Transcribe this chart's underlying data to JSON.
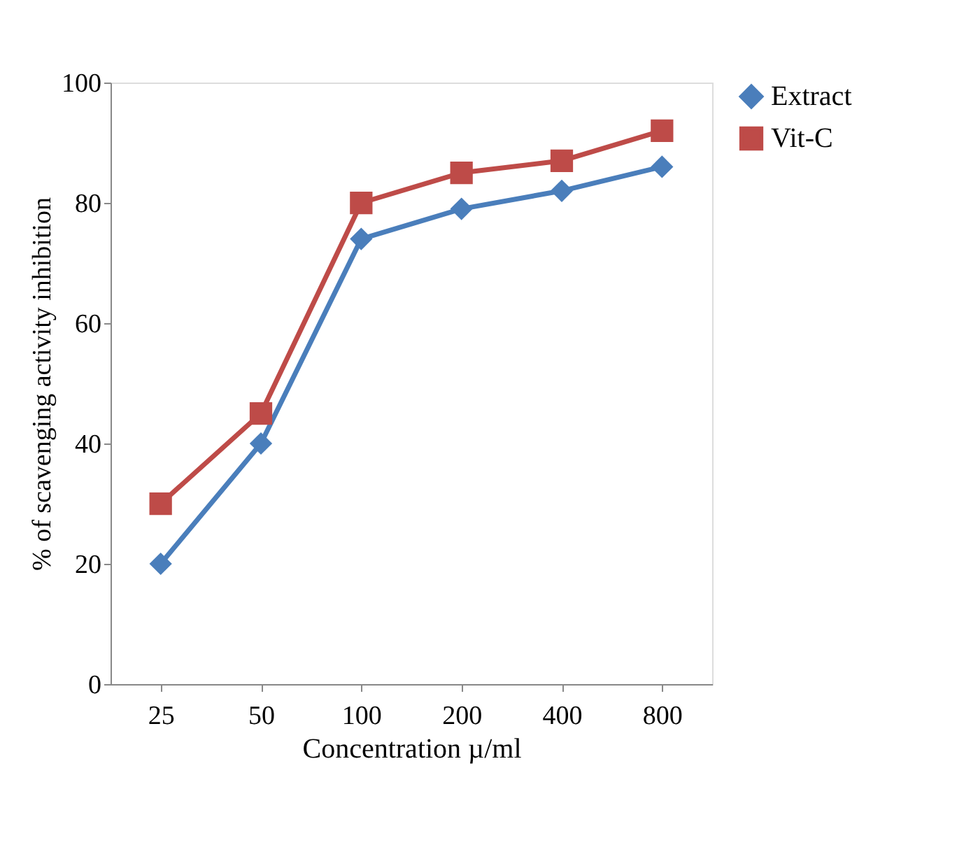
{
  "chart_data": {
    "type": "line",
    "xlabel": "Concentration µ/ml",
    "ylabel": "% of scavenging activity inhibition",
    "categories": [
      "25",
      "50",
      "100",
      "200",
      "400",
      "800"
    ],
    "series": [
      {
        "name": "Extract",
        "color": "#4a7ebb",
        "marker": "diamond",
        "values": [
          20,
          40,
          74,
          79,
          82,
          86
        ]
      },
      {
        "name": "Vit-C",
        "color": "#be4b48",
        "marker": "square",
        "values": [
          30,
          45,
          80,
          85,
          87,
          92
        ]
      }
    ],
    "ylim": [
      0,
      100
    ],
    "yticks": [
      0,
      20,
      40,
      60,
      80,
      100
    ],
    "grid": false,
    "legend": "right",
    "line_style": "solid"
  }
}
